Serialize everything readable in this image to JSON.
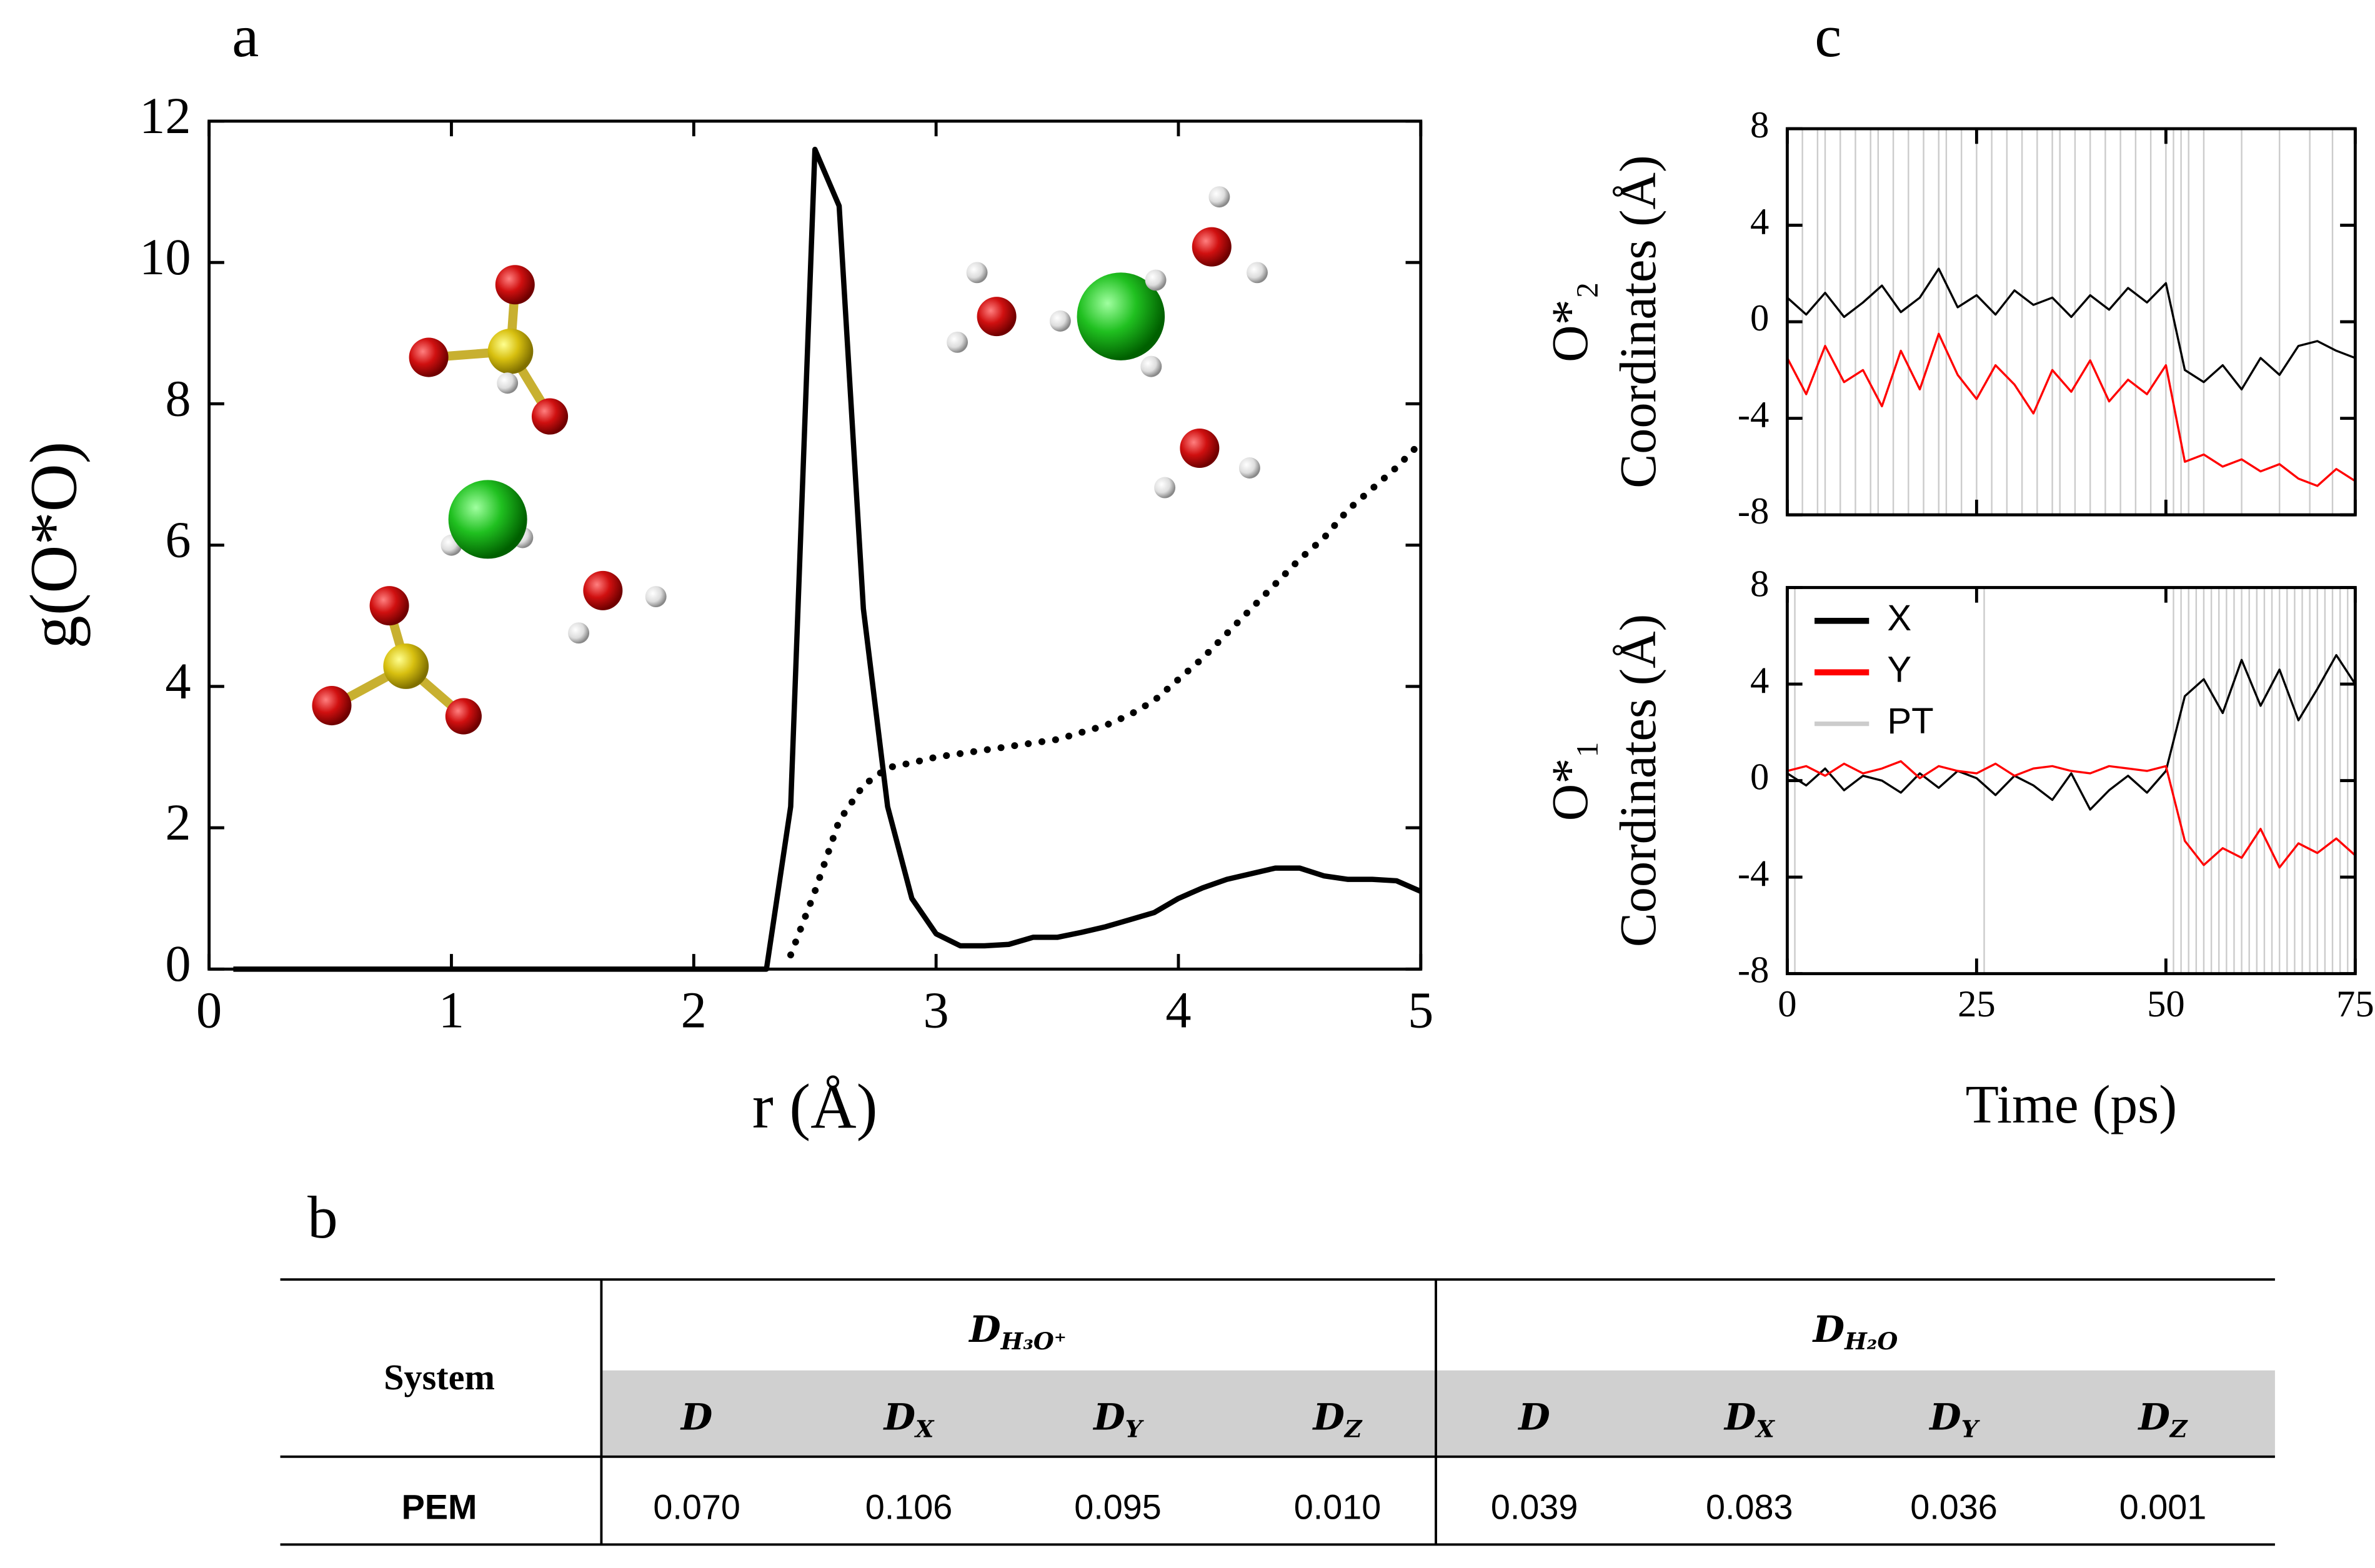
{
  "chart_data": [
    {
      "type": "line",
      "panel_label": "a",
      "xlabel": "r (Å)",
      "ylabel": "g(O*O)",
      "x": [
        0.1,
        2.3,
        2.4,
        2.5,
        2.6,
        2.7,
        2.8,
        2.9,
        3.0,
        3.1,
        3.2,
        3.3,
        3.4,
        3.5,
        3.6,
        3.7,
        3.8,
        3.9,
        4.0,
        4.1,
        4.2,
        4.3,
        4.4,
        4.5,
        4.6,
        4.7,
        4.8,
        4.9,
        5.0
      ],
      "series": [
        {
          "color": "#000000",
          "style": "solid",
          "values": [
            0,
            0,
            2.3,
            11.6,
            10.8,
            5.1,
            2.3,
            1.0,
            0.5,
            0.33,
            0.33,
            0.35,
            0.45,
            0.45,
            0.52,
            0.6,
            0.7,
            0.8,
            1.0,
            1.15,
            1.27,
            1.35,
            1.43,
            1.43,
            1.32,
            1.27,
            1.27,
            1.25,
            1.1
          ]
        },
        {
          "color": "#000000",
          "style": "dotted",
          "values": [
            null,
            null,
            0.2,
            1.1,
            2.1,
            2.6,
            2.85,
            2.92,
            3.0,
            3.05,
            3.1,
            3.15,
            3.2,
            3.25,
            3.35,
            3.45,
            3.6,
            3.8,
            4.1,
            4.4,
            4.75,
            5.1,
            5.45,
            5.8,
            6.1,
            6.5,
            6.8,
            7.1,
            7.45
          ]
        }
      ],
      "xlim": [
        0,
        5
      ],
      "ylim": [
        0,
        12
      ],
      "xticks": [
        0,
        1,
        2,
        3,
        4,
        5
      ],
      "yticks": [
        0,
        2,
        4,
        6,
        8,
        10,
        12
      ]
    },
    {
      "type": "line",
      "panel_label": "c",
      "ylabel": [
        "O*₂",
        "Coordinates (Å)"
      ],
      "x": [
        0,
        2.5,
        5,
        7.5,
        10,
        12.5,
        15,
        17.5,
        20,
        22.5,
        25,
        27.5,
        30,
        32.5,
        35,
        37.5,
        40,
        42.5,
        45,
        47.5,
        50,
        52.5,
        55,
        57.5,
        60,
        62.5,
        65,
        67.5,
        70,
        72.5,
        75
      ],
      "series": [
        {
          "color": "#000000",
          "values": [
            1.0,
            0.3,
            1.2,
            0.2,
            0.8,
            1.5,
            0.4,
            1.0,
            2.2,
            0.6,
            1.1,
            0.3,
            1.3,
            0.7,
            1.0,
            0.2,
            1.1,
            0.5,
            1.4,
            0.8,
            1.6,
            -2.0,
            -2.5,
            -1.8,
            -2.8,
            -1.5,
            -2.2,
            -1.0,
            -0.8,
            -1.2,
            -1.5
          ]
        },
        {
          "color": "#ff0000",
          "values": [
            -1.5,
            -3.0,
            -1.0,
            -2.5,
            -2.0,
            -3.5,
            -1.2,
            -2.8,
            -0.5,
            -2.2,
            -3.2,
            -1.8,
            -2.6,
            -3.8,
            -2.0,
            -2.9,
            -1.6,
            -3.3,
            -2.4,
            -3.0,
            -1.8,
            -5.8,
            -5.5,
            -6.0,
            -5.7,
            -6.2,
            -5.9,
            -6.5,
            -6.8,
            -6.1,
            -6.6
          ]
        }
      ],
      "events": {
        "color": "#cccccc",
        "x": [
          2,
          4,
          5,
          7,
          9,
          11,
          12,
          14,
          16,
          18,
          20,
          21,
          23,
          25,
          27,
          29,
          31,
          33,
          35,
          36,
          38,
          40,
          42,
          44,
          46,
          48,
          50,
          51,
          52,
          53,
          55,
          60,
          65,
          69,
          72
        ]
      },
      "xlim": [
        0,
        75
      ],
      "ylim": [
        -8,
        8
      ],
      "xticks": [
        0,
        25,
        50,
        75
      ],
      "yticks": [
        -8,
        -4,
        0,
        4,
        8
      ]
    },
    {
      "type": "line",
      "ylabel": [
        "O*₁",
        "Coordinates (Å)"
      ],
      "xlabel": "Time (ps)",
      "legend": "upper left",
      "x": [
        0,
        2.5,
        5,
        7.5,
        10,
        12.5,
        15,
        17.5,
        20,
        22.5,
        25,
        27.5,
        30,
        32.5,
        35,
        37.5,
        40,
        42.5,
        45,
        47.5,
        50,
        52.5,
        55,
        57.5,
        60,
        62.5,
        65,
        67.5,
        70,
        72.5,
        75
      ],
      "series": [
        {
          "name": "X",
          "color": "#000000",
          "values": [
            0.3,
            -0.2,
            0.5,
            -0.4,
            0.2,
            0.0,
            -0.5,
            0.3,
            -0.3,
            0.4,
            0.1,
            -0.6,
            0.2,
            -0.2,
            -0.8,
            0.3,
            -1.2,
            -0.4,
            0.2,
            -0.5,
            0.4,
            3.5,
            4.2,
            2.8,
            5.0,
            3.1,
            4.6,
            2.5,
            3.8,
            5.2,
            4.0
          ]
        },
        {
          "name": "Y",
          "color": "#ff0000",
          "values": [
            0.4,
            0.6,
            0.2,
            0.7,
            0.3,
            0.5,
            0.8,
            0.1,
            0.6,
            0.4,
            0.3,
            0.7,
            0.2,
            0.5,
            0.6,
            0.4,
            0.3,
            0.6,
            0.5,
            0.4,
            0.6,
            -2.5,
            -3.5,
            -2.8,
            -3.2,
            -2.0,
            -3.6,
            -2.6,
            -3.0,
            -2.4,
            -3.1
          ]
        }
      ],
      "events": {
        "name": "PT",
        "color": "#cccccc",
        "x": [
          1,
          26,
          51,
          52,
          53,
          54,
          55,
          56,
          57,
          58,
          59,
          60,
          61,
          62,
          63,
          64,
          65,
          66,
          67,
          68,
          69,
          70,
          71,
          72,
          73,
          74
        ]
      },
      "xlim": [
        0,
        75
      ],
      "ylim": [
        -8,
        8
      ],
      "xticks": [
        0,
        25,
        50,
        75
      ],
      "yticks": [
        -8,
        -4,
        0,
        4,
        8
      ]
    }
  ],
  "table": {
    "panel_label": "b",
    "row_header": "System",
    "groups": [
      {
        "main": "D",
        "sub": "H₃O⁺"
      },
      {
        "main": "D",
        "sub": "H₂O"
      }
    ],
    "columns": [
      {
        "main": "D"
      },
      {
        "main": "D",
        "sub": "X"
      },
      {
        "main": "D",
        "sub": "Y"
      },
      {
        "main": "D",
        "sub": "Z"
      },
      {
        "main": "D"
      },
      {
        "main": "D",
        "sub": "X"
      },
      {
        "main": "D",
        "sub": "Y"
      },
      {
        "main": "D",
        "sub": "Z"
      }
    ],
    "rows": [
      [
        "PEM",
        "0.070",
        "0.106",
        "0.095",
        "0.010",
        "0.039",
        "0.083",
        "0.036",
        "0.001"
      ]
    ]
  }
}
